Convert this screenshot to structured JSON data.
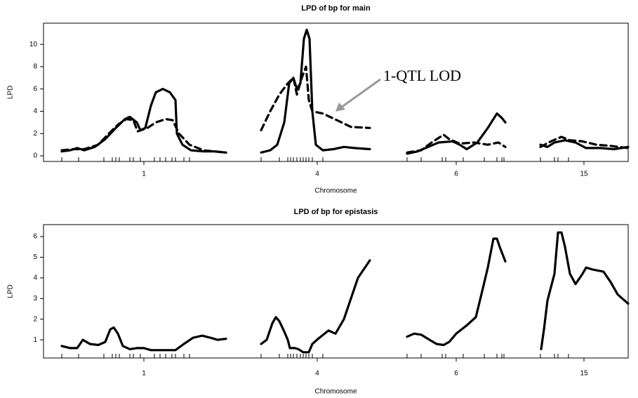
{
  "chart_data": [
    {
      "type": "line",
      "title": "LPD of bp for main",
      "xlabel": "Chromosome",
      "ylabel": "LPD",
      "annotation": "1-QTL LOD",
      "xlim": [
        6.2,
        89.5
      ],
      "ylim": [
        -0.5,
        11.9
      ],
      "yticks": [
        0,
        2,
        4,
        6,
        8,
        10
      ],
      "xticks": [
        {
          "value": 20.5,
          "label": "1"
        },
        {
          "value": 45.2,
          "label": "4"
        },
        {
          "value": 65.0,
          "label": "6"
        },
        {
          "value": 83.2,
          "label": "15"
        }
      ],
      "rug": [
        8.8,
        11.2,
        14.8,
        16.0,
        16.5,
        17.0,
        18.5,
        19.0,
        20.0,
        22.0,
        22.8,
        23.6,
        24.5,
        25.0,
        26.2,
        27.0,
        37.2,
        39.8,
        41.0,
        41.4,
        41.8,
        42.3,
        42.8,
        43.2,
        43.6,
        44.0,
        44.5,
        46.0,
        58.0,
        60.0,
        63.0,
        63.5,
        66.0,
        69.0,
        70.8,
        71.5,
        71.8,
        77.0,
        79.0,
        79.5,
        81.0,
        89.5
      ],
      "series": [
        {
          "name": "main",
          "color": "#000000",
          "dash": "solid",
          "x": [
            8.8,
            10.0,
            11.0,
            12.0,
            13.5,
            15.0,
            16.5,
            17.8,
            18.5,
            19.5,
            20.0,
            20.7,
            21.5,
            22.2,
            23.2,
            24.2,
            25.0,
            25.2,
            26.0,
            27.2,
            29.0,
            30.5,
            32.2,
            34.7,
            37.2,
            38.5,
            39.5,
            40.5,
            41.2,
            41.8,
            42.3,
            42.8,
            43.3,
            43.7,
            44.1,
            44.5,
            45.0,
            46.0,
            47.5,
            49.0,
            50.5,
            52.7,
            55.4,
            58.0,
            59.5,
            61.0,
            62.5,
            64.5,
            65.5,
            66.5,
            68.0,
            69.5,
            70.8,
            71.5,
            72.0,
            74.5,
            77.0,
            78.0,
            79.0,
            80.5,
            82.0,
            83.5,
            85.5,
            87.5,
            89.5
          ],
          "values": [
            0.4,
            0.5,
            0.7,
            0.5,
            0.8,
            1.5,
            2.5,
            3.3,
            3.5,
            3.0,
            2.3,
            2.5,
            4.5,
            5.7,
            6.0,
            5.7,
            5.0,
            2.0,
            1.0,
            0.5,
            0.4,
            0.4,
            0.3,
            null,
            0.3,
            0.5,
            1.0,
            3.0,
            6.5,
            7.0,
            6.0,
            6.5,
            10.5,
            11.3,
            10.5,
            4.0,
            1.0,
            0.5,
            0.6,
            0.8,
            0.7,
            0.6,
            null,
            0.2,
            0.4,
            0.8,
            1.2,
            1.3,
            1.0,
            0.6,
            1.2,
            2.5,
            3.8,
            3.4,
            3.0,
            null,
            1.0,
            0.8,
            1.2,
            1.4,
            1.2,
            0.7,
            0.7,
            0.6,
            0.8
          ]
        },
        {
          "name": "1-QTL",
          "color": "#000000",
          "dash": "dashed",
          "x": [
            8.8,
            10.5,
            12.0,
            14.0,
            15.5,
            16.8,
            18.0,
            19.0,
            19.6,
            21.0,
            22.2,
            23.6,
            24.6,
            25.5,
            27.0,
            29.0,
            32.2,
            34.7,
            37.2,
            38.5,
            39.8,
            41.0,
            41.8,
            42.3,
            43.0,
            43.6,
            44.0,
            44.5,
            46.0,
            48.0,
            50.0,
            52.7,
            55.4,
            58.0,
            60.0,
            61.5,
            63.2,
            64.0,
            65.5,
            67.5,
            69.5,
            71.0,
            72.0,
            74.5,
            77.0,
            78.5,
            80.0,
            81.2,
            83.0,
            85.0,
            87.0,
            89.5
          ],
          "values": [
            0.5,
            0.6,
            0.6,
            1.0,
            2.0,
            2.8,
            3.3,
            3.2,
            2.2,
            2.5,
            3.0,
            3.3,
            3.2,
            2.0,
            1.0,
            0.5,
            0.3,
            null,
            2.3,
            4.0,
            5.5,
            6.5,
            7.0,
            5.5,
            7.0,
            8.0,
            5.0,
            4.0,
            3.8,
            3.2,
            2.6,
            2.5,
            null,
            0.3,
            0.5,
            1.2,
            1.9,
            1.5,
            1.1,
            1.2,
            1.0,
            1.2,
            0.8,
            null,
            0.8,
            1.3,
            1.7,
            1.4,
            1.3,
            1.0,
            0.9,
            0.7
          ]
        }
      ]
    },
    {
      "type": "line",
      "title": "LPD of bp for epistasis",
      "xlabel": "Chromosome",
      "ylabel": "LPD",
      "xlim": [
        6.2,
        89.5
      ],
      "ylim": [
        0.12,
        6.58
      ],
      "yticks": [
        1,
        2,
        3,
        4,
        5,
        6
      ],
      "xticks": [
        {
          "value": 20.5,
          "label": "1"
        },
        {
          "value": 45.2,
          "label": "4"
        },
        {
          "value": 65.0,
          "label": "6"
        },
        {
          "value": 83.2,
          "label": "15"
        }
      ],
      "rug": [
        8.8,
        11.2,
        14.8,
        16.0,
        16.5,
        17.0,
        18.5,
        19.0,
        20.0,
        22.0,
        22.8,
        23.6,
        24.5,
        25.0,
        26.2,
        27.0,
        37.2,
        39.8,
        41.0,
        41.4,
        41.8,
        42.3,
        42.8,
        43.2,
        43.6,
        44.0,
        44.5,
        46.0,
        58.0,
        60.0,
        63.0,
        63.5,
        66.0,
        69.0,
        70.8,
        71.5,
        71.8,
        77.0,
        79.0,
        79.5,
        81.0,
        89.5
      ],
      "series": [
        {
          "name": "epistasis",
          "color": "#000000",
          "dash": "solid",
          "x": [
            8.8,
            10.0,
            11.0,
            11.8,
            12.8,
            14.0,
            15.0,
            15.7,
            16.2,
            16.8,
            17.5,
            18.5,
            19.5,
            20.5,
            21.5,
            24.0,
            25.0,
            26.2,
            27.5,
            28.8,
            30.0,
            31.0,
            32.2,
            34.7,
            37.2,
            38.0,
            38.8,
            39.3,
            39.8,
            40.5,
            41.0,
            41.3,
            42.0,
            42.5,
            43.2,
            44.0,
            44.5,
            45.5,
            46.8,
            47.8,
            49.0,
            50.0,
            51.0,
            51.8,
            52.7,
            55.4,
            58.0,
            59.0,
            60.0,
            61.2,
            62.2,
            63.2,
            64.0,
            65.0,
            66.5,
            67.8,
            68.8,
            69.5,
            70.3,
            70.8,
            71.2,
            72.0,
            74.5,
            77.1,
            77.5,
            78.0,
            79.0,
            79.5,
            80.0,
            80.5,
            81.2,
            82.0,
            83.0,
            83.5,
            84.5,
            86.0,
            87.0,
            88.0,
            89.5
          ],
          "values": [
            0.7,
            0.6,
            0.6,
            1.0,
            0.8,
            0.75,
            0.9,
            1.5,
            1.6,
            1.3,
            0.7,
            0.55,
            0.6,
            0.6,
            0.5,
            0.5,
            0.5,
            0.8,
            1.1,
            1.2,
            1.1,
            1.0,
            1.05,
            null,
            0.8,
            1.0,
            1.8,
            2.1,
            1.9,
            1.4,
            1.0,
            0.6,
            0.6,
            0.55,
            0.4,
            0.4,
            0.8,
            1.1,
            1.45,
            1.3,
            2.0,
            3.0,
            4.0,
            4.4,
            4.85,
            null,
            1.15,
            1.3,
            1.25,
            1.0,
            0.8,
            0.75,
            0.9,
            1.3,
            1.7,
            2.1,
            3.5,
            4.5,
            5.9,
            5.9,
            5.5,
            4.8,
            null,
            0.55,
            1.5,
            2.9,
            4.2,
            6.2,
            6.2,
            5.5,
            4.2,
            3.7,
            4.2,
            4.5,
            4.4,
            4.3,
            3.8,
            3.2,
            2.75
          ]
        }
      ]
    }
  ]
}
